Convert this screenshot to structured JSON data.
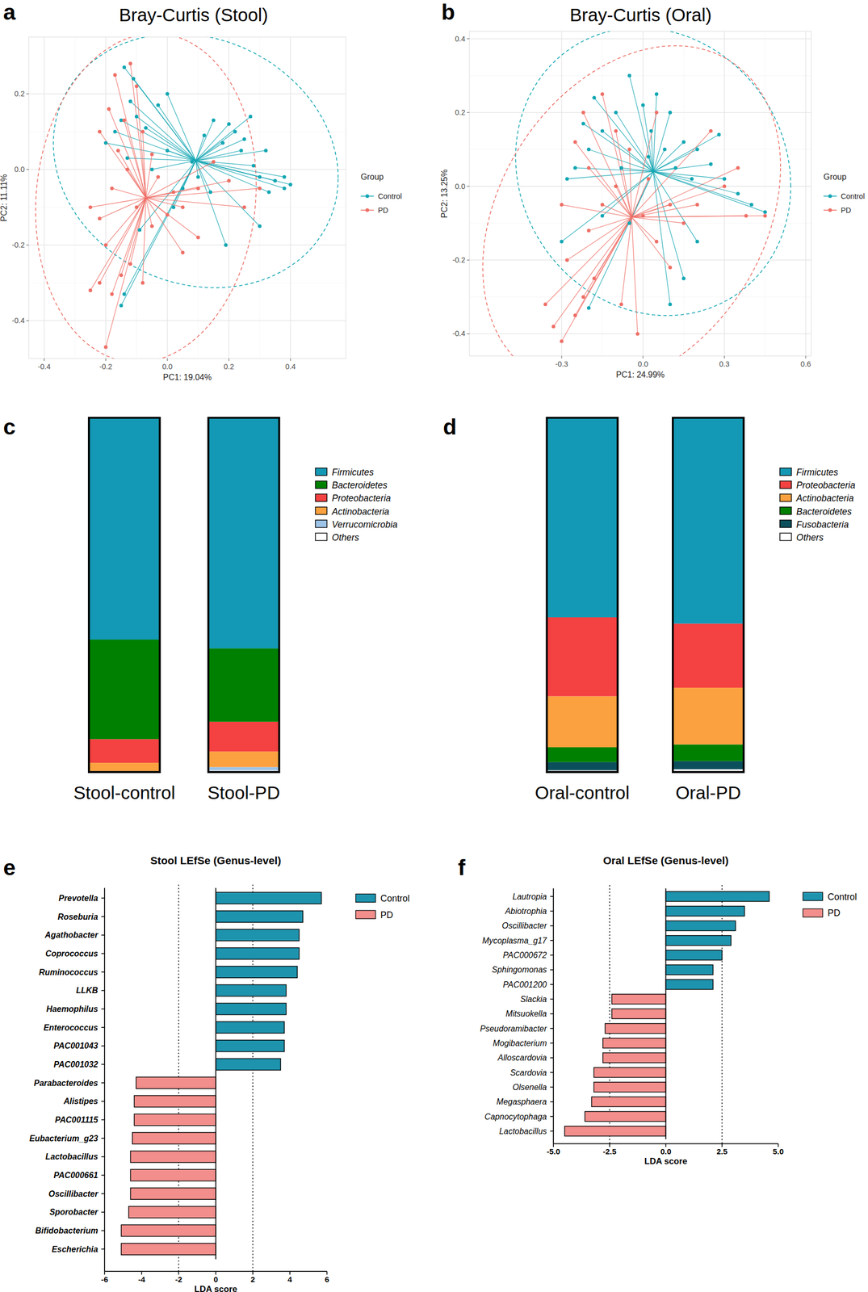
{
  "chart_data": [
    {
      "type": "scatter",
      "panel_label": "a",
      "title": "Bray-Curtis (Stool)",
      "x_label": "PC1: 19.04%",
      "y_label": "PC2: 11.11%",
      "legend_title": "Group",
      "legend": "right",
      "grid": true,
      "xlim": [
        -0.45,
        0.58
      ],
      "ylim": [
        -0.5,
        0.35
      ],
      "xticks": [
        -0.4,
        -0.2,
        {
          "value": 0,
          "label": "0.0"
        },
        0.2,
        0.4
      ],
      "yticks": [
        -0.4,
        -0.2,
        {
          "value": 0,
          "label": "0.0"
        },
        0.2
      ],
      "series": [
        {
          "name": "Control",
          "color": "#13A6B3",
          "x": [
            0.4,
            0.38,
            0.35,
            0.33,
            0.3,
            0.28,
            0.32,
            0.25,
            0.22,
            0.2,
            0.18,
            0.15,
            0.12,
            0.27,
            0.24,
            0.1,
            0.05,
            0.0,
            -0.03,
            -0.07,
            -0.1,
            -0.12,
            -0.15,
            -0.17,
            -0.2,
            -0.13,
            -0.15,
            -0.14,
            0.19,
            0.3,
            0.08,
            0.14,
            0.38,
            -0.09,
            0.02,
            -0.05,
            -0.14,
            -0.11,
            0.0
          ],
          "values": [
            -0.04,
            -0.05,
            -0.03,
            -0.06,
            -0.02,
            0.01,
            0.05,
            0.08,
            0.1,
            0.12,
            0.07,
            0.13,
            0.09,
            0.14,
            0.05,
            -0.02,
            -0.05,
            0.05,
            0.17,
            0.11,
            0.14,
            0.18,
            0.13,
            0.1,
            0.07,
            0.03,
            -0.36,
            -0.33,
            -0.2,
            -0.15,
            0.02,
            -0.06,
            -0.02,
            -0.16,
            -0.1,
            0.0,
            0.27,
            0.24,
            0.2
          ]
        },
        {
          "name": "PD",
          "color": "#EE6F66",
          "x": [
            -0.2,
            -0.25,
            -0.22,
            -0.18,
            -0.15,
            -0.12,
            -0.2,
            -0.25,
            -0.22,
            -0.18,
            -0.16,
            -0.14,
            -0.17,
            -0.12,
            -0.1,
            -0.08,
            -0.05,
            -0.03,
            0.02,
            0.05,
            0.1,
            0.15,
            0.2,
            0.25,
            0.1,
            0.05,
            -0.05,
            -0.1,
            -0.22,
            -0.19,
            0.3,
            -0.08,
            0.0,
            -0.13
          ],
          "values": [
            -0.47,
            -0.32,
            -0.3,
            -0.33,
            -0.28,
            -0.25,
            -0.2,
            -0.1,
            -0.13,
            -0.05,
            0.05,
            0.13,
            0.25,
            0.28,
            0.22,
            0.1,
            0.04,
            -0.02,
            -0.06,
            -0.1,
            -0.05,
            0.02,
            -0.03,
            -0.1,
            -0.18,
            -0.22,
            -0.15,
            -0.1,
            0.1,
            0.16,
            -0.05,
            -0.3,
            -0.12,
            0.0
          ]
        }
      ]
    },
    {
      "type": "scatter",
      "panel_label": "b",
      "title": "Bray-Curtis (Oral)",
      "x_label": "PC1: 24.99%",
      "y_label": "PC2: 13.25%",
      "legend_title": "Group",
      "legend": "right",
      "grid": true,
      "xlim": [
        -0.64,
        0.62
      ],
      "ylim": [
        -0.46,
        0.42
      ],
      "xticks": [
        -0.3,
        {
          "value": 0,
          "label": "0.0"
        },
        0.3,
        0.6
      ],
      "yticks": [
        -0.4,
        -0.2,
        {
          "value": 0,
          "label": "0.0"
        },
        0.2,
        0.4
      ],
      "series": [
        {
          "name": "Control",
          "color": "#13A6B3",
          "x": [
            0.45,
            0.4,
            0.35,
            0.3,
            0.25,
            0.2,
            0.15,
            0.1,
            0.05,
            0.0,
            -0.05,
            -0.1,
            -0.15,
            -0.2,
            -0.25,
            -0.28,
            -0.22,
            -0.18,
            0.03,
            0.08,
            0.12,
            0.2,
            0.15,
            0.1,
            -0.05,
            -0.15,
            -0.3,
            -0.2,
            0.18,
            0.28,
            -0.08,
            0.02
          ],
          "values": [
            -0.07,
            -0.05,
            -0.02,
            0.02,
            0.06,
            0.1,
            0.12,
            0.2,
            0.25,
            0.22,
            0.3,
            0.2,
            0.15,
            0.1,
            0.05,
            0.02,
            0.17,
            0.24,
            0.15,
            0.1,
            0.05,
            -0.15,
            -0.25,
            -0.32,
            -0.1,
            -0.08,
            -0.15,
            -0.33,
            0.02,
            0.14,
            0.05,
            0.08
          ]
        },
        {
          "name": "PD",
          "color": "#EE6F66",
          "x": [
            -0.36,
            -0.33,
            -0.3,
            -0.25,
            -0.22,
            -0.18,
            -0.28,
            -0.2,
            -0.15,
            -0.1,
            -0.2,
            -0.25,
            -0.22,
            -0.15,
            -0.1,
            -0.05,
            0.0,
            0.05,
            0.1,
            0.15,
            0.2,
            0.3,
            0.38,
            0.45,
            0.35,
            0.25,
            0.05,
            -0.08,
            -0.02,
            0.1,
            -0.3,
            0.02
          ],
          "values": [
            -0.32,
            -0.38,
            -0.42,
            -0.35,
            -0.3,
            -0.25,
            -0.2,
            -0.12,
            -0.05,
            0.0,
            0.05,
            0.12,
            0.2,
            0.25,
            0.15,
            0.1,
            -0.08,
            -0.15,
            -0.22,
            -0.1,
            -0.05,
            0.0,
            -0.08,
            -0.08,
            0.05,
            0.15,
            0.2,
            -0.32,
            -0.4,
            -0.05,
            -0.05,
            0.02
          ]
        }
      ]
    },
    {
      "type": "bar",
      "stacked": true,
      "panel_label": "c",
      "legend": "right",
      "tick_labels": false,
      "ylim": [
        0,
        100
      ],
      "categories": [
        "Stool-control",
        "Stool-PD"
      ],
      "series": [
        {
          "name": "Firmicutes",
          "color": "#1399B5",
          "values": [
            62.6,
            65.1
          ]
        },
        {
          "name": "Bacteroidetes",
          "color": "#008000",
          "values": [
            28.1,
            20.7
          ]
        },
        {
          "name": "Proteobacteria",
          "color": "#F44141",
          "values": [
            6.7,
            8.4
          ]
        },
        {
          "name": "Actinobacteria",
          "color": "#FCA13F",
          "values": [
            2.3,
            4.4
          ]
        },
        {
          "name": "Verrucomicrobia",
          "color": "#9DC3E6",
          "values": [
            0.1,
            0.9
          ]
        },
        {
          "name": "Others",
          "color": "#FFFFFF",
          "values": [
            0.2,
            0.5
          ]
        }
      ]
    },
    {
      "type": "bar",
      "stacked": true,
      "panel_label": "d",
      "legend": "right",
      "tick_labels": false,
      "ylim": [
        0,
        100
      ],
      "categories": [
        "Oral-control",
        "Oral-PD"
      ],
      "series": [
        {
          "name": "Firmicutes",
          "color": "#1399B5",
          "values": [
            56.3,
            58.1
          ]
        },
        {
          "name": "Proteobacteria",
          "color": "#F44141",
          "values": [
            22.3,
            18.1
          ]
        },
        {
          "name": "Actinobacteria",
          "color": "#FCA13F",
          "values": [
            14.4,
            16.0
          ]
        },
        {
          "name": "Bacteroidetes",
          "color": "#008000",
          "values": [
            4.2,
            4.7
          ]
        },
        {
          "name": "Fusobacteria",
          "color": "#0B4F5C",
          "values": [
            2.3,
            2.3
          ]
        },
        {
          "name": "Others",
          "color": "#FFFFFF",
          "values": [
            0.5,
            0.8
          ]
        }
      ]
    },
    {
      "type": "bar",
      "orientation": "horizontal",
      "panel_label": "e",
      "title": "Stool LEfSe (Genus-level)",
      "x_label": "LDA score",
      "legend": "right",
      "xlim": [
        -6,
        6
      ],
      "xticks": [
        -6,
        -4,
        -2,
        0,
        2,
        4,
        6
      ],
      "reference_lines": [
        -2,
        2
      ],
      "categories": [
        "Prevotella",
        "Roseburia",
        "Agathobacter",
        "Coprococcus",
        "Ruminococcus",
        "LLKB",
        "Haemophilus",
        "Enterococcus",
        "PAC001043",
        "PAC001032",
        "Parabacteroides",
        "Alistipes",
        "PAC001115",
        "Eubacterium_g23",
        "Lactobacillus",
        "PAC000661",
        "Oscillibacter",
        "Sporobacter",
        "Bifidobacterium",
        "Escherichia"
      ],
      "series": [
        {
          "name": "Control",
          "color": "#1E93AE",
          "values": [
            5.7,
            4.7,
            4.5,
            4.5,
            4.4,
            3.8,
            3.8,
            3.7,
            3.7,
            3.5,
            null,
            null,
            null,
            null,
            null,
            null,
            null,
            null,
            null,
            null
          ]
        },
        {
          "name": "PD",
          "color": "#F28E8B",
          "values": [
            null,
            null,
            null,
            null,
            null,
            null,
            null,
            null,
            null,
            null,
            -4.3,
            -4.4,
            -4.4,
            -4.5,
            -4.6,
            -4.6,
            -4.6,
            -4.7,
            -5.1,
            -5.1
          ]
        }
      ]
    },
    {
      "type": "bar",
      "orientation": "horizontal",
      "panel_label": "f",
      "title": "Oral LEfSe (Genus-level)",
      "x_label": "LDA score",
      "legend": "right",
      "xlim": [
        -5,
        5
      ],
      "xticks": [
        {
          "value": -5,
          "label": "-5.0"
        },
        -2.5,
        {
          "value": 0,
          "label": "0.0"
        },
        2.5,
        {
          "value": 5,
          "label": "5.0"
        }
      ],
      "reference_lines": [
        -2.5,
        2.5
      ],
      "categories": [
        "Lautropia",
        "Abiotrophia",
        "Oscillibacter",
        "Mycoplasma_g17",
        "PAC000672",
        "Sphingomonas",
        "PAC001200",
        "Slackia",
        "Mitsuokella",
        "Pseudoramibacter",
        "Mogibacterium",
        "Alloscardovia",
        "Scardovia",
        "Olsenella",
        "Megasphaera",
        "Capnocytophaga",
        "Lactobacillus"
      ],
      "series": [
        {
          "name": "Control",
          "color": "#1E93AE",
          "values": [
            4.6,
            3.5,
            3.1,
            2.9,
            2.5,
            2.1,
            2.1,
            null,
            null,
            null,
            null,
            null,
            null,
            null,
            null,
            null,
            null
          ]
        },
        {
          "name": "PD",
          "color": "#F28E8B",
          "values": [
            null,
            null,
            null,
            null,
            null,
            null,
            null,
            -2.4,
            -2.4,
            -2.7,
            -2.8,
            -2.8,
            -3.2,
            -3.2,
            -3.3,
            -3.6,
            -4.5
          ]
        }
      ]
    }
  ]
}
